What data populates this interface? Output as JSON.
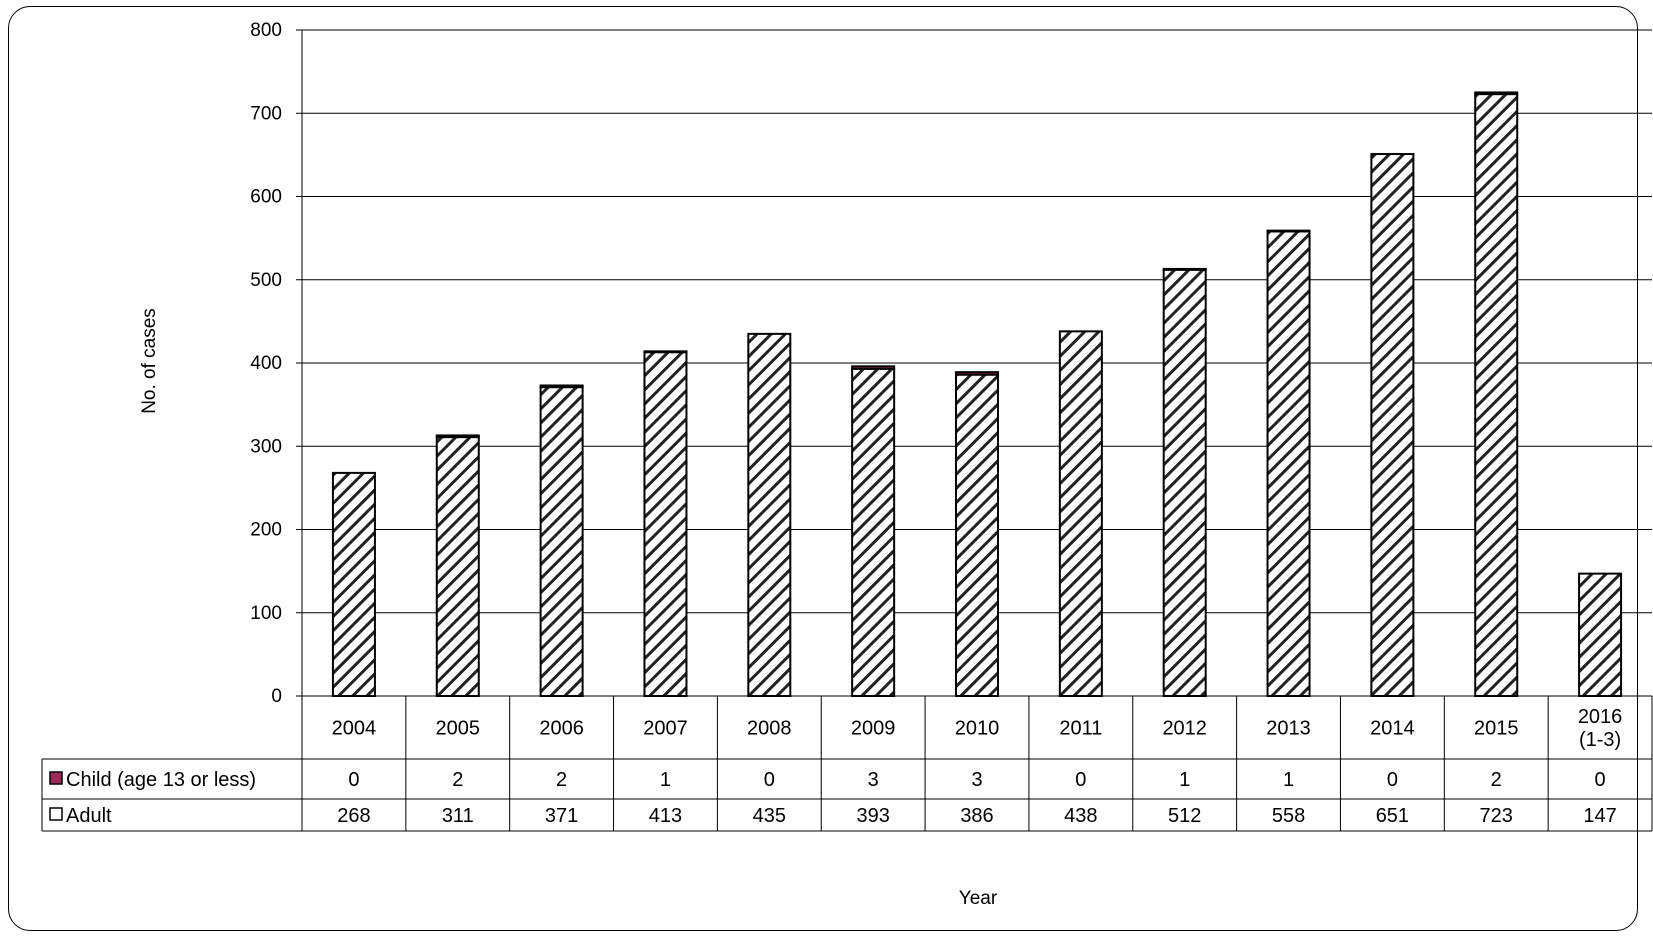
{
  "colors": {
    "child": "#9b2a5a",
    "adult": "#ffffff",
    "hatch": "#222222"
  },
  "chart_data": {
    "type": "bar",
    "stacked": true,
    "categories": [
      "2004",
      "2005",
      "2006",
      "2007",
      "2008",
      "2009",
      "2010",
      "2011",
      "2012",
      "2013",
      "2014",
      "2015",
      "2016\n(1-3)"
    ],
    "series": [
      {
        "name": "Child (age 13 or less)",
        "values": [
          0,
          2,
          2,
          1,
          0,
          3,
          3,
          0,
          1,
          1,
          0,
          2,
          0
        ]
      },
      {
        "name": "Adult",
        "values": [
          268,
          311,
          371,
          413,
          435,
          393,
          386,
          438,
          512,
          558,
          651,
          723,
          147
        ]
      }
    ],
    "xlabel": "Year",
    "ylabel": "No. of cases",
    "ylim": [
      0,
      800
    ],
    "yticks": [
      0,
      100,
      200,
      300,
      400,
      500,
      600,
      700,
      800
    ],
    "grid": true,
    "legend": "data-table"
  }
}
